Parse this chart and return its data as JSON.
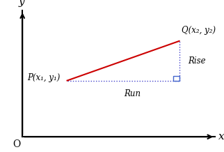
{
  "bg_color": "#ffffff",
  "axis_color": "#000000",
  "line_color": "#cc0000",
  "dashed_color": "#4444cc",
  "right_angle_color": "#4466cc",
  "P": [
    0.3,
    0.47
  ],
  "Q": [
    0.8,
    0.73
  ],
  "P_label": "P(x₁, y₁)",
  "Q_label": "Q(x₂, y₂)",
  "run_label": "Run",
  "rise_label": "Rise",
  "origin_label": "O",
  "x_label": "x",
  "y_label": "y",
  "figsize": [
    3.22,
    2.18
  ],
  "dpi": 100
}
